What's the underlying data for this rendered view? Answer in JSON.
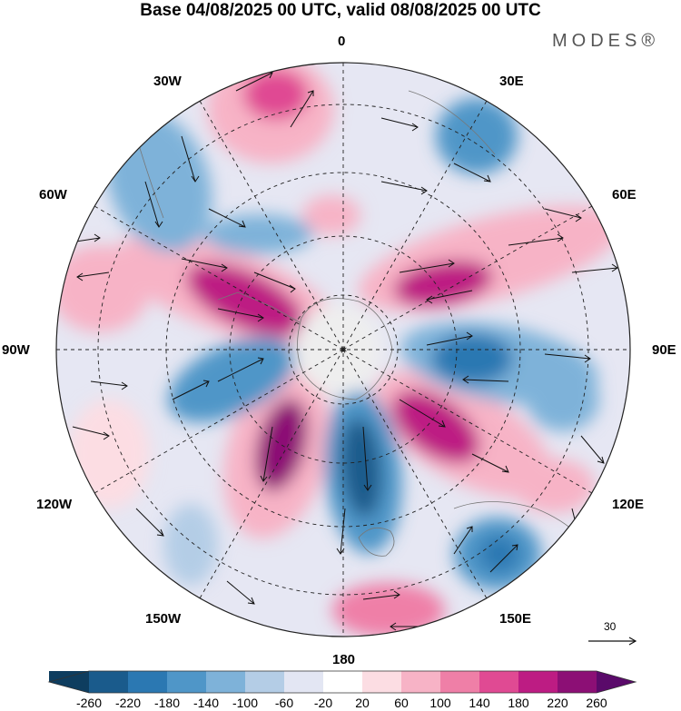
{
  "header": {
    "title": "Base 04/08/2025 00 UTC, valid 08/08/2025 00 UTC",
    "brand": "MODES®"
  },
  "map": {
    "projection": "south-polar-stereographic",
    "longitude_labels": [
      "0",
      "30E",
      "60E",
      "90E",
      "120E",
      "150E",
      "180",
      "150W",
      "120W",
      "90W",
      "60W",
      "30W"
    ],
    "reference_vector": "30"
  },
  "colorbar": {
    "ticks": [
      "-260",
      "-220",
      "-180",
      "-140",
      "-100",
      "-60",
      "-20",
      "20",
      "60",
      "100",
      "140",
      "180",
      "220",
      "260"
    ],
    "colors": [
      "#0e3d5f",
      "#1a5b8c",
      "#2b78b2",
      "#4f96c8",
      "#7eb2d9",
      "#b4cde6",
      "#e3e6f3",
      "#ffffff",
      "#fcdde3",
      "#f7b3c6",
      "#ef7fa7",
      "#e04a93",
      "#bd1c83",
      "#8c0f75",
      "#5a0a6a"
    ]
  }
}
